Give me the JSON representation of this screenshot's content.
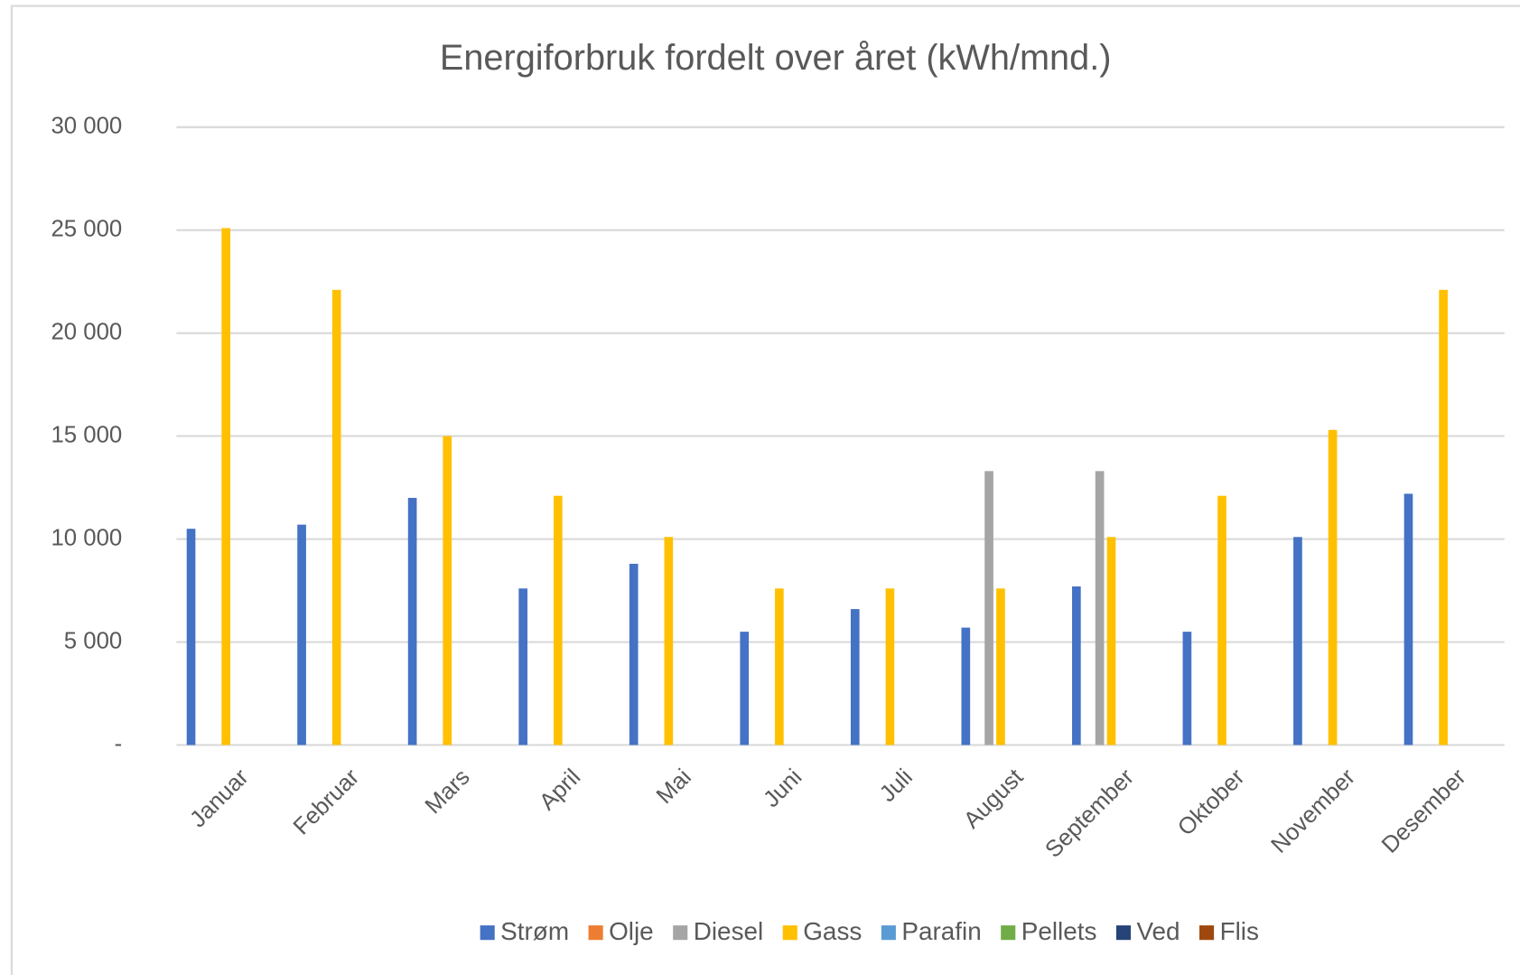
{
  "chart_data": {
    "type": "bar",
    "title": "Energiforbruk fordelt over året (kWh/mnd.)",
    "categories": [
      "Januar",
      "Februar",
      "Mars",
      "April",
      "Mai",
      "Juni",
      "Juli",
      "August",
      "September",
      "Oktober",
      "November",
      "Desember"
    ],
    "series": [
      {
        "name": "Strøm",
        "color": "#4472c4",
        "values": [
          10500,
          10700,
          12000,
          7600,
          8800,
          5500,
          6600,
          5700,
          7700,
          5500,
          10100,
          12200
        ]
      },
      {
        "name": "Olje",
        "color": "#ed7d31",
        "values": [
          0,
          0,
          0,
          0,
          0,
          0,
          0,
          0,
          0,
          0,
          0,
          0
        ]
      },
      {
        "name": "Diesel",
        "color": "#a5a5a5",
        "values": [
          0,
          0,
          0,
          0,
          0,
          0,
          0,
          13300,
          13300,
          0,
          0,
          0
        ]
      },
      {
        "name": "Gass",
        "color": "#ffc000",
        "values": [
          25100,
          22100,
          15000,
          12100,
          10100,
          7600,
          7600,
          7600,
          10100,
          12100,
          15300,
          22100
        ]
      },
      {
        "name": "Parafin",
        "color": "#5b9bd5",
        "values": [
          0,
          0,
          0,
          0,
          0,
          0,
          0,
          0,
          0,
          0,
          0,
          0
        ]
      },
      {
        "name": "Pellets",
        "color": "#70ad47",
        "values": [
          0,
          0,
          0,
          0,
          0,
          0,
          0,
          0,
          0,
          0,
          0,
          0
        ]
      },
      {
        "name": "Ved",
        "color": "#264478",
        "values": [
          0,
          0,
          0,
          0,
          0,
          0,
          0,
          0,
          0,
          0,
          0,
          0
        ]
      },
      {
        "name": "Flis",
        "color": "#9e480e",
        "values": [
          0,
          0,
          0,
          0,
          0,
          0,
          0,
          0,
          0,
          0,
          0,
          0
        ]
      }
    ],
    "ylim": [
      0,
      30000
    ],
    "yticks": [
      {
        "value": 0,
        "label": "-"
      },
      {
        "value": 5000,
        "label": "5 000"
      },
      {
        "value": 10000,
        "label": "10 000"
      },
      {
        "value": 15000,
        "label": "15 000"
      },
      {
        "value": 20000,
        "label": "20 000"
      },
      {
        "value": 25000,
        "label": "25 000"
      },
      {
        "value": 30000,
        "label": "30 000"
      }
    ],
    "grid": true,
    "legend": "bottom"
  }
}
